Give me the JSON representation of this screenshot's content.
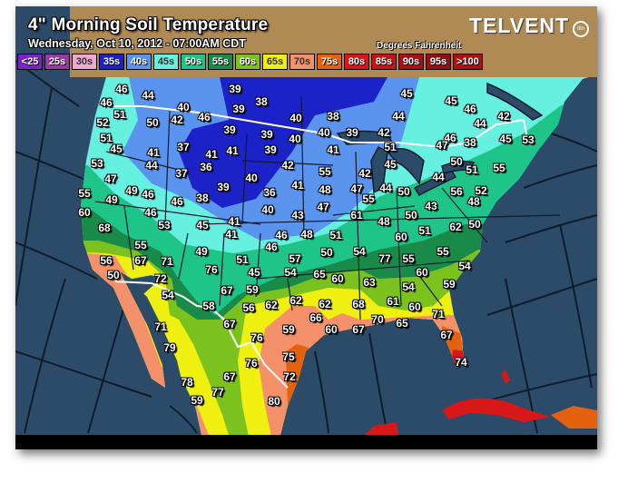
{
  "header": {
    "title": "4\" Morning Soil Temperature",
    "subtitle": "Wednesday, Oct 10, 2012 - 07:00AM CDT",
    "units": "Degrees Fahrenheit",
    "logo": "TELVENT",
    "logo_badge": "dtn"
  },
  "legend": [
    {
      "label": "<25",
      "color": "#7a22c4"
    },
    {
      "label": "25s",
      "color": "#9a3aa6"
    },
    {
      "label": "30s",
      "color": "#f2a6d4"
    },
    {
      "label": "35s",
      "color": "#1a22c8"
    },
    {
      "label": "40s",
      "color": "#5a94ee"
    },
    {
      "label": "45s",
      "color": "#66f0e0"
    },
    {
      "label": "50s",
      "color": "#1ec488"
    },
    {
      "label": "55s",
      "color": "#1a8a48"
    },
    {
      "label": "60s",
      "color": "#7cc21e"
    },
    {
      "label": "65s",
      "color": "#f0f010"
    },
    {
      "label": "70s",
      "color": "#f4906a"
    },
    {
      "label": "75s",
      "color": "#e4620e"
    },
    {
      "label": "80s",
      "color": "#d81818"
    },
    {
      "label": "85s",
      "color": "#c41414"
    },
    {
      "label": "90s",
      "color": "#a41212"
    },
    {
      "label": "95s",
      "color": "#941010"
    },
    {
      "label": ">100",
      "color": "#a81414"
    }
  ],
  "colors": {
    "ocean": "#2b4b68",
    "canada_land": "#b08a55",
    "borders": "#ffffff",
    "grid": "#0e1c2c"
  },
  "station_values": [
    "46",
    "44",
    "46",
    "51",
    "40",
    "42",
    "50",
    "46",
    "39",
    "38",
    "39",
    "40",
    "52",
    "39",
    "39",
    "40",
    "51",
    "45",
    "37",
    "41",
    "41",
    "41",
    "39",
    "44",
    "36",
    "42",
    "53",
    "37",
    "40",
    "47",
    "41",
    "55",
    "49",
    "46",
    "39",
    "36",
    "49",
    "46",
    "38",
    "60",
    "40",
    "43",
    "46",
    "53",
    "45",
    "41",
    "41",
    "46",
    "48",
    "68",
    "46",
    "55",
    "49",
    "45",
    "45",
    "46",
    "38",
    "44",
    "42",
    "44",
    "40",
    "39",
    "42",
    "46",
    "47",
    "38",
    "45",
    "53",
    "41",
    "51",
    "45",
    "50",
    "51",
    "55",
    "55",
    "42",
    "44",
    "48",
    "47",
    "44",
    "50",
    "56",
    "52",
    "55",
    "47",
    "43",
    "48",
    "61",
    "48",
    "50",
    "50",
    "62",
    "60",
    "51",
    "51",
    "50",
    "54",
    "55",
    "56",
    "67",
    "71",
    "50",
    "72",
    "76",
    "51",
    "45",
    "54",
    "57",
    "54",
    "67",
    "59",
    "58",
    "56",
    "62",
    "62",
    "67",
    "59",
    "71",
    "76",
    "79",
    "75",
    "76",
    "67",
    "72",
    "78",
    "77",
    "59",
    "80",
    "77",
    "55",
    "54",
    "65",
    "60",
    "63",
    "60",
    "54",
    "59",
    "62",
    "68",
    "61",
    "60",
    "66",
    "70",
    "65",
    "71",
    "60",
    "67",
    "67",
    "74",
    "80"
  ]
}
